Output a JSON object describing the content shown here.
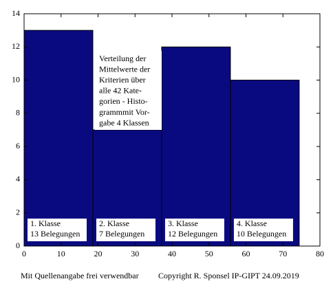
{
  "chart_data": {
    "type": "histogram",
    "bins": [
      0,
      18.6,
      37.2,
      55.8,
      74.4
    ],
    "values": [
      13,
      7,
      12,
      10
    ],
    "color": "#0a0a80",
    "xlim": [
      0,
      80
    ],
    "xticks": [
      0,
      10,
      20,
      30,
      40,
      50,
      60,
      70,
      80
    ],
    "ylim": [
      0,
      14
    ],
    "yticks": [
      0,
      2,
      4,
      6,
      8,
      10,
      12,
      14
    ],
    "bar_labels": [
      [
        "1. Klasse",
        "13 Belegungen"
      ],
      [
        "2. Klasse",
        "7 Belegungen"
      ],
      [
        "3. Klasse",
        "12 Belegungen"
      ],
      [
        "4. Klasse",
        "10 Belegungen"
      ]
    ],
    "annotation": [
      "Verteilung der",
      "Mittelwerte der",
      "Kriterien über",
      "alle 42 Kate-",
      "gorien - Histo-",
      "grammmit Vor-",
      "gabe 4 Klassen"
    ],
    "footer": [
      "Mit Quellenangabe frei verwendbar",
      "Copyright R. Sponsel IP-GIPT 24.09.2019"
    ]
  }
}
